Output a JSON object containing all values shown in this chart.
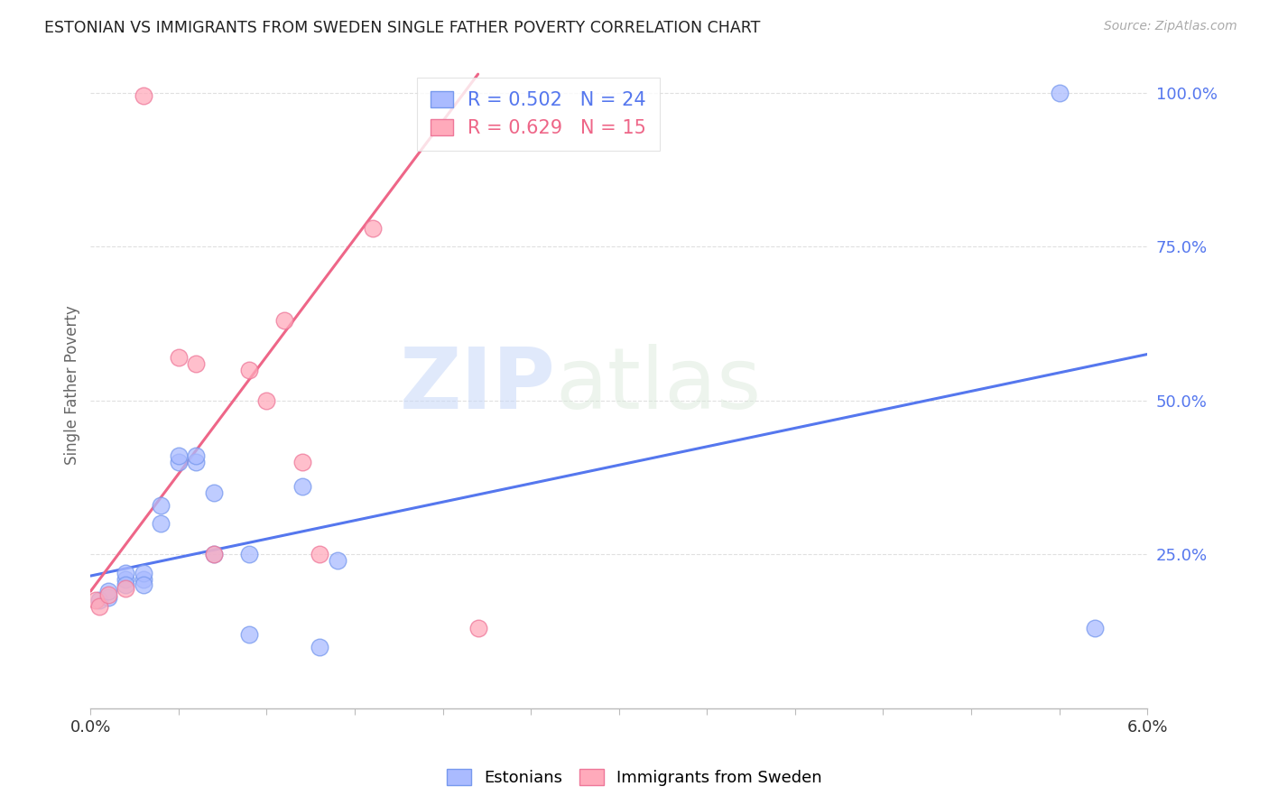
{
  "title": "ESTONIAN VS IMMIGRANTS FROM SWEDEN SINGLE FATHER POVERTY CORRELATION CHART",
  "source": "Source: ZipAtlas.com",
  "ylabel": "Single Father Poverty",
  "legend_label1": "Estonians",
  "legend_label2": "Immigrants from Sweden",
  "R1": 0.502,
  "N1": 24,
  "R2": 0.629,
  "N2": 15,
  "blue_fill": "#aabbff",
  "blue_edge": "#7799ee",
  "pink_fill": "#ffaabb",
  "pink_edge": "#ee7799",
  "blue_line_color": "#5577ee",
  "pink_line_color": "#ee6688",
  "watermark_zip": "ZIP",
  "watermark_atlas": "atlas",
  "xmin": 0.0,
  "xmax": 0.06,
  "ymin": 0.0,
  "ymax": 1.05,
  "yticks": [
    0.0,
    0.25,
    0.5,
    0.75,
    1.0
  ],
  "ytick_labels": [
    "",
    "25.0%",
    "50.0%",
    "75.0%",
    "100.0%"
  ],
  "blue_scatter_x": [
    0.0005,
    0.001,
    0.001,
    0.002,
    0.002,
    0.002,
    0.003,
    0.003,
    0.003,
    0.004,
    0.004,
    0.005,
    0.005,
    0.006,
    0.006,
    0.007,
    0.007,
    0.009,
    0.009,
    0.012,
    0.013,
    0.014,
    0.055,
    0.057
  ],
  "blue_scatter_y": [
    0.175,
    0.18,
    0.19,
    0.21,
    0.22,
    0.2,
    0.21,
    0.22,
    0.2,
    0.3,
    0.33,
    0.4,
    0.41,
    0.4,
    0.41,
    0.35,
    0.25,
    0.25,
    0.12,
    0.36,
    0.1,
    0.24,
    1.0,
    0.13
  ],
  "pink_scatter_x": [
    0.0003,
    0.0005,
    0.001,
    0.002,
    0.003,
    0.005,
    0.006,
    0.007,
    0.009,
    0.01,
    0.011,
    0.012,
    0.013,
    0.016,
    0.022
  ],
  "pink_scatter_y": [
    0.175,
    0.165,
    0.185,
    0.195,
    0.995,
    0.57,
    0.56,
    0.25,
    0.55,
    0.5,
    0.63,
    0.4,
    0.25,
    0.78,
    0.13
  ],
  "blue_line_x": [
    0.0,
    0.06
  ],
  "blue_line_y": [
    0.215,
    0.575
  ],
  "pink_line_x": [
    0.0,
    0.022
  ],
  "pink_line_y": [
    0.19,
    1.03
  ],
  "grid_color": "#cccccc",
  "bg_color": "#ffffff"
}
